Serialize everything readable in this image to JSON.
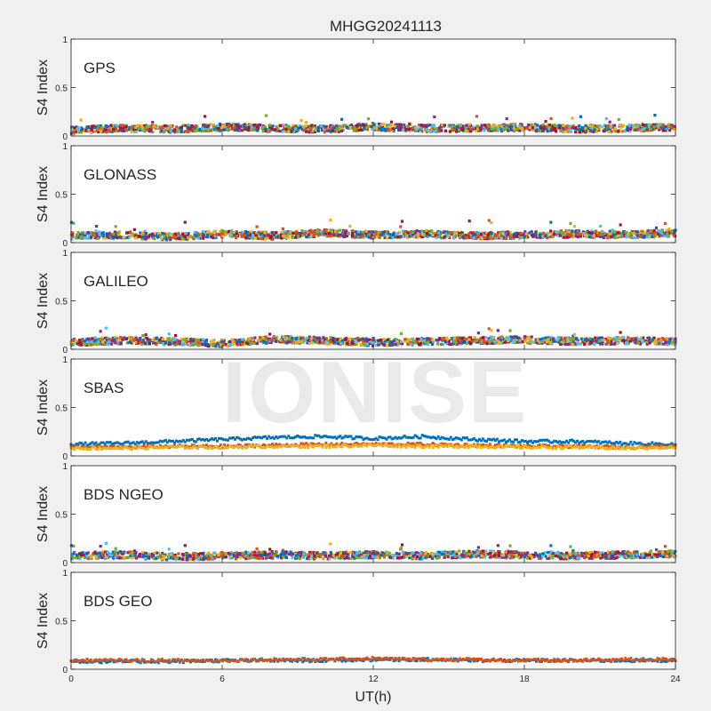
{
  "chart_data": {
    "type": "scatter",
    "title": "MHGG20241113",
    "xlabel": "UT(h)",
    "ylabel": "S4 Index",
    "xlim": [
      0,
      24
    ],
    "ylim": [
      0,
      1
    ],
    "xticks": [
      0,
      6,
      12,
      18,
      24
    ],
    "yticks": [
      0,
      0.5,
      1
    ],
    "ytick_labels": [
      "0",
      "0.5",
      "1"
    ],
    "grid": false,
    "watermark": "IONISE",
    "series_colors": [
      "#0072BD",
      "#D95319",
      "#EDB120",
      "#7E2F8E",
      "#77AC30",
      "#4DBEEE",
      "#A2142F"
    ],
    "panels": [
      {
        "label": "GPS",
        "typical_s4": [
          0.06,
          0.08,
          0.07,
          0.09,
          0.08,
          0.07,
          0.09,
          0.08,
          0.08,
          0.09,
          0.07,
          0.08,
          0.09
        ],
        "peak_s4": 0.22
      },
      {
        "label": "GLONASS",
        "typical_s4": [
          0.07,
          0.08,
          0.06,
          0.09,
          0.07,
          0.1,
          0.08,
          0.09,
          0.07,
          0.08,
          0.09,
          0.08,
          0.1
        ],
        "peak_s4": 0.24
      },
      {
        "label": "GALILEO",
        "typical_s4": [
          0.07,
          0.09,
          0.08,
          0.06,
          0.1,
          0.09,
          0.07,
          0.08,
          0.09,
          0.1,
          0.08,
          0.09,
          0.08
        ],
        "peak_s4": 0.22
      },
      {
        "label": "SBAS",
        "series": [
          {
            "values": [
              0.12,
              0.13,
              0.15,
              0.17,
              0.19,
              0.2,
              0.18,
              0.2,
              0.17,
              0.15,
              0.15,
              0.13,
              0.12
            ]
          },
          {
            "values": [
              0.09,
              0.09,
              0.1,
              0.1,
              0.11,
              0.12,
              0.12,
              0.12,
              0.11,
              0.1,
              0.1,
              0.09,
              0.1
            ]
          },
          {
            "values": [
              0.08,
              0.08,
              0.09,
              0.09,
              0.1,
              0.1,
              0.11,
              0.1,
              0.1,
              0.09,
              0.09,
              0.08,
              0.09
            ]
          }
        ]
      },
      {
        "label": "BDS NGEO",
        "typical_s4": [
          0.07,
          0.08,
          0.06,
          0.07,
          0.08,
          0.07,
          0.08,
          0.07,
          0.09,
          0.08,
          0.07,
          0.08,
          0.09
        ],
        "peak_s4": 0.2
      },
      {
        "label": "BDS GEO",
        "series": [
          {
            "values": [
              0.08,
              0.08,
              0.08,
              0.09,
              0.09,
              0.09,
              0.1,
              0.1,
              0.09,
              0.09,
              0.09,
              0.09,
              0.09
            ]
          },
          {
            "values": [
              0.09,
              0.09,
              0.09,
              0.09,
              0.1,
              0.1,
              0.11,
              0.1,
              0.1,
              0.09,
              0.09,
              0.1,
              0.1
            ]
          }
        ]
      }
    ]
  }
}
